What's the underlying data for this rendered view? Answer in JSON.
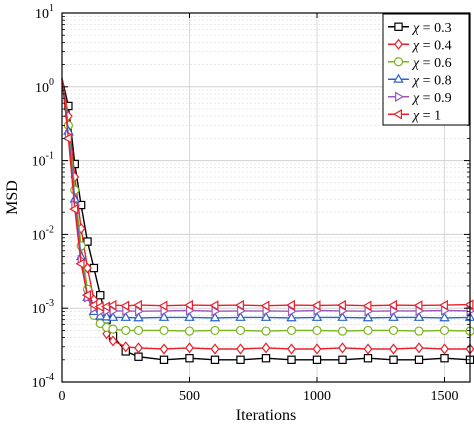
{
  "chart_data": {
    "type": "line",
    "title": "",
    "xlabel": "Iterations",
    "ylabel": "MSD",
    "yscale": "log",
    "xlim": [
      0,
      1600
    ],
    "ylim": [
      0.0001,
      10
    ],
    "x_ticks": [
      0,
      500,
      1000,
      1500
    ],
    "x_tick_labels": [
      "0",
      "500",
      "1000",
      "1500"
    ],
    "y_ticks": [
      0.0001,
      0.001,
      0.01,
      0.1,
      1,
      10
    ],
    "y_tick_labels": [
      {
        "base": "10",
        "exp": "-4"
      },
      {
        "base": "10",
        "exp": "-3"
      },
      {
        "base": "10",
        "exp": "-2"
      },
      {
        "base": "10",
        "exp": "-1"
      },
      {
        "base": "10",
        "exp": "0"
      },
      {
        "base": "10",
        "exp": "1"
      }
    ],
    "grid": true,
    "legend_position": "top-right",
    "x": [
      0,
      25,
      50,
      75,
      100,
      125,
      150,
      175,
      200,
      250,
      300,
      400,
      500,
      600,
      700,
      800,
      900,
      1000,
      1100,
      1200,
      1300,
      1400,
      1500,
      1600
    ],
    "series": [
      {
        "name": "χ = 0.3",
        "legend_symbol": "χ",
        "legend_value": "= 0.3",
        "color": "#000000",
        "marker": "square",
        "values": [
          1.3,
          0.55,
          0.09,
          0.025,
          0.008,
          0.0035,
          0.0015,
          0.0007,
          0.00042,
          0.00026,
          0.00022,
          0.0002,
          0.00021,
          0.0002,
          0.0002,
          0.00021,
          0.0002,
          0.0002,
          0.0002,
          0.00021,
          0.0002,
          0.0002,
          0.00021,
          0.0002
        ]
      },
      {
        "name": "χ = 0.4",
        "legend_symbol": "χ",
        "legend_value": "= 0.4",
        "color": "#e8202a",
        "marker": "diamond",
        "values": [
          1.3,
          0.4,
          0.06,
          0.012,
          0.0035,
          0.0013,
          0.0007,
          0.00045,
          0.00036,
          0.0003,
          0.00029,
          0.00028,
          0.00029,
          0.00028,
          0.00028,
          0.00029,
          0.00028,
          0.00028,
          0.00029,
          0.00028,
          0.00028,
          0.00029,
          0.00028,
          0.00028
        ]
      },
      {
        "name": "χ = 0.6",
        "legend_symbol": "χ",
        "legend_value": "= 0.6",
        "color": "#7ab51d",
        "marker": "circle",
        "values": [
          1.3,
          0.3,
          0.04,
          0.007,
          0.0018,
          0.0008,
          0.00062,
          0.00055,
          0.00052,
          0.0005,
          0.0005,
          0.0005,
          0.00049,
          0.0005,
          0.0005,
          0.00049,
          0.0005,
          0.0005,
          0.00049,
          0.0005,
          0.0005,
          0.00049,
          0.0005,
          0.00049
        ]
      },
      {
        "name": "χ = 0.8",
        "legend_symbol": "χ",
        "legend_value": "= 0.8",
        "color": "#2a63c9",
        "marker": "triangle-up",
        "values": [
          1.3,
          0.25,
          0.03,
          0.005,
          0.0014,
          0.0009,
          0.00078,
          0.00076,
          0.00075,
          0.00075,
          0.00074,
          0.00075,
          0.00075,
          0.00074,
          0.00075,
          0.00075,
          0.00074,
          0.00075,
          0.00075,
          0.00074,
          0.00075,
          0.00075,
          0.00074,
          0.00075
        ]
      },
      {
        "name": "χ = 0.9",
        "legend_symbol": "χ",
        "legend_value": "= 0.9",
        "color": "#9b59b6",
        "marker": "triangle-right",
        "values": [
          1.3,
          0.22,
          0.025,
          0.0045,
          0.0014,
          0.001,
          0.0009,
          0.00092,
          0.00092,
          0.00092,
          0.00091,
          0.00092,
          0.00093,
          0.00091,
          0.00092,
          0.00092,
          0.00091,
          0.00093,
          0.00092,
          0.00091,
          0.00092,
          0.00092,
          0.00093,
          0.00092
        ]
      },
      {
        "name": "χ = 1",
        "legend_symbol": "χ",
        "legend_value": "= 1",
        "color": "#e8202a",
        "marker": "triangle-left",
        "values": [
          1.3,
          0.2,
          0.022,
          0.004,
          0.0015,
          0.0011,
          0.00105,
          0.00105,
          0.0011,
          0.00108,
          0.0011,
          0.00108,
          0.0011,
          0.00109,
          0.0011,
          0.00108,
          0.0011,
          0.00109,
          0.0011,
          0.00108,
          0.0011,
          0.00109,
          0.0011,
          0.00112
        ]
      }
    ]
  }
}
